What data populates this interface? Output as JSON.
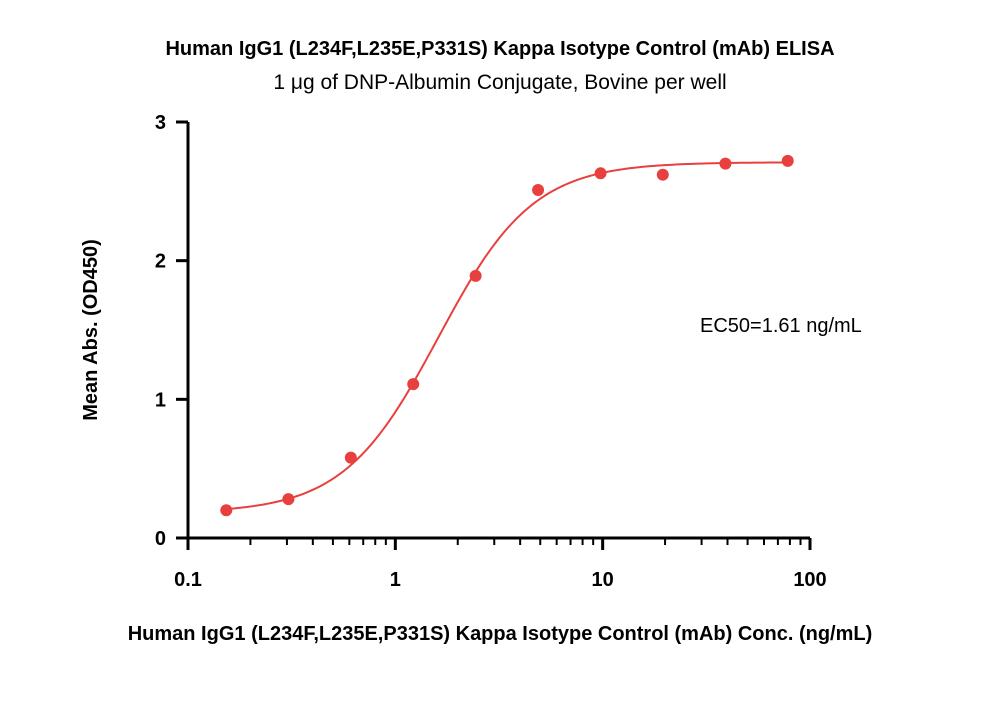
{
  "chart_data": {
    "type": "scatter",
    "title": "Human IgG1 (L234F,L235E,P331S) Kappa Isotype Control (mAb) ELISA",
    "subtitle": "1 μg of DNP-Albumin Conjugate, Bovine per well",
    "xlabel": "Human IgG1 (L234F,L235E,P331S) Kappa Isotype Control (mAb) Conc. (ng/mL)",
    "ylabel": "Mean Abs. (OD450)",
    "xscale": "log",
    "xlim": [
      0.1,
      100
    ],
    "ylim": [
      0,
      3
    ],
    "xticks": [
      0.1,
      1,
      10,
      100
    ],
    "xtick_labels": [
      "0.1",
      "1",
      "10",
      "100"
    ],
    "yticks": [
      0,
      1,
      2,
      3
    ],
    "ytick_labels": [
      "0",
      "1",
      "2",
      "3"
    ],
    "grid": false,
    "legend": "none",
    "series": [
      {
        "color": "#e8403f",
        "x": [
          0.153,
          0.305,
          0.61,
          1.22,
          2.44,
          4.88,
          9.77,
          19.5,
          39.1,
          78.1
        ],
        "y": [
          0.2,
          0.28,
          0.58,
          1.11,
          1.89,
          2.51,
          2.63,
          2.62,
          2.7,
          2.72
        ]
      }
    ],
    "fit_curve": {
      "model": "4PL",
      "color": "#e8403f",
      "bottom": 0.18,
      "top": 2.71,
      "ec50": 1.61,
      "hill": 1.9
    },
    "annotation": "EC50=1.61 ng/mL",
    "axis_color": "#000000"
  }
}
